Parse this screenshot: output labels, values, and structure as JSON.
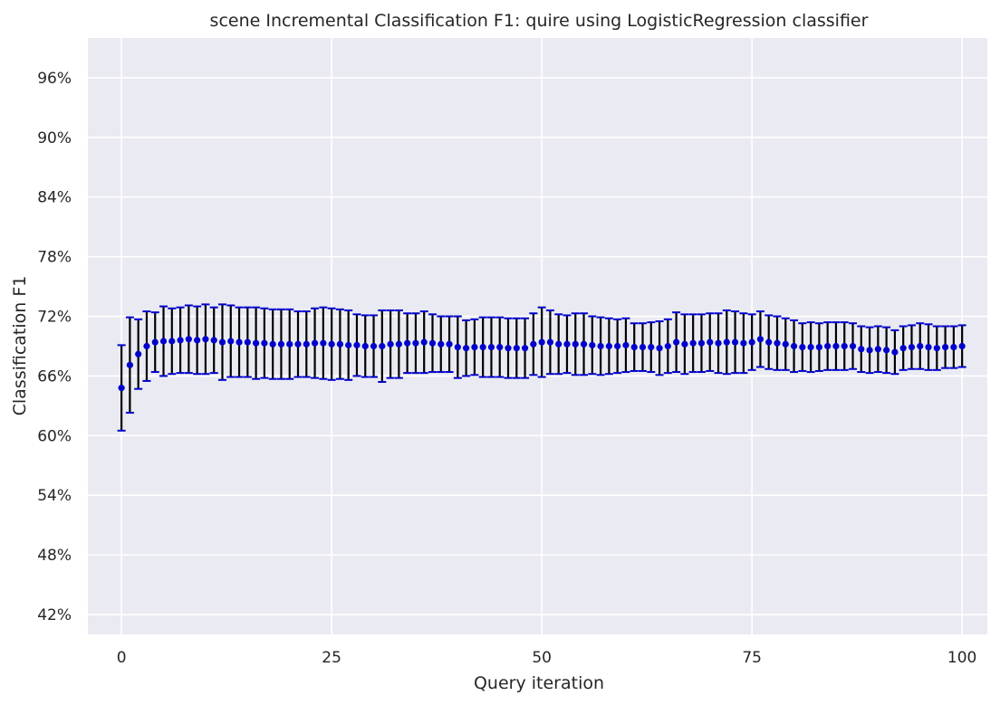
{
  "chart_data": {
    "type": "scatter",
    "subtype": "errorbar",
    "title": "scene Incremental Classification F1: quire using LogisticRegression classifier",
    "xlabel": "Query iteration",
    "ylabel": "Classification F1",
    "xlim": [
      -4,
      103
    ],
    "ylim": [
      0.4,
      1.0
    ],
    "xticks": [
      0,
      25,
      50,
      75,
      100
    ],
    "xtick_labels": [
      "0",
      "25",
      "50",
      "75",
      "100"
    ],
    "yticks": [
      0.42,
      0.48,
      0.54,
      0.6,
      0.66,
      0.72,
      0.78,
      0.84,
      0.9,
      0.96
    ],
    "ytick_labels": [
      "42%",
      "48%",
      "54%",
      "60%",
      "66%",
      "72%",
      "78%",
      "84%",
      "90%",
      "96%"
    ],
    "grid": true,
    "background": "#eaeaf2",
    "marker_color": "#0000cd",
    "errorbar_color": "#000000",
    "cap_color": "#0000cd",
    "series": [
      {
        "x": [
          0,
          1,
          2,
          3,
          4,
          5,
          6,
          7,
          8,
          9,
          10,
          11,
          12,
          13,
          14,
          15,
          16,
          17,
          18,
          19,
          20,
          21,
          22,
          23,
          24,
          25,
          26,
          27,
          28,
          29,
          30,
          31,
          32,
          33,
          34,
          35,
          36,
          37,
          38,
          39,
          40,
          41,
          42,
          43,
          44,
          45,
          46,
          47,
          48,
          49,
          50,
          51,
          52,
          53,
          54,
          55,
          56,
          57,
          58,
          59,
          60,
          61,
          62,
          63,
          64,
          65,
          66,
          67,
          68,
          69,
          70,
          71,
          72,
          73,
          74,
          75,
          76,
          77,
          78,
          79,
          80,
          81,
          82,
          83,
          84,
          85,
          86,
          87,
          88,
          89,
          90,
          91,
          92,
          93,
          94,
          95,
          96,
          97,
          98,
          99,
          100
        ],
        "y": [
          0.648,
          0.671,
          0.682,
          0.69,
          0.694,
          0.695,
          0.695,
          0.696,
          0.697,
          0.696,
          0.697,
          0.696,
          0.694,
          0.695,
          0.694,
          0.694,
          0.693,
          0.693,
          0.692,
          0.692,
          0.692,
          0.692,
          0.692,
          0.693,
          0.693,
          0.692,
          0.692,
          0.691,
          0.691,
          0.69,
          0.69,
          0.69,
          0.692,
          0.692,
          0.693,
          0.693,
          0.694,
          0.693,
          0.692,
          0.692,
          0.689,
          0.688,
          0.689,
          0.689,
          0.689,
          0.689,
          0.688,
          0.688,
          0.688,
          0.692,
          0.694,
          0.694,
          0.692,
          0.692,
          0.692,
          0.692,
          0.691,
          0.69,
          0.69,
          0.69,
          0.691,
          0.689,
          0.689,
          0.689,
          0.688,
          0.69,
          0.694,
          0.692,
          0.693,
          0.693,
          0.694,
          0.693,
          0.694,
          0.694,
          0.693,
          0.694,
          0.697,
          0.694,
          0.693,
          0.692,
          0.69,
          0.689,
          0.689,
          0.689,
          0.69,
          0.69,
          0.69,
          0.69,
          0.687,
          0.686,
          0.687,
          0.686,
          0.684,
          0.688,
          0.689,
          0.69,
          0.689,
          0.688,
          0.689,
          0.689,
          0.69
        ],
        "yerr": [
          0.043,
          0.048,
          0.035,
          0.035,
          0.03,
          0.035,
          0.033,
          0.033,
          0.034,
          0.034,
          0.035,
          0.033,
          0.038,
          0.036,
          0.035,
          0.035,
          0.036,
          0.035,
          0.035,
          0.035,
          0.035,
          0.033,
          0.033,
          0.035,
          0.036,
          0.036,
          0.035,
          0.035,
          0.031,
          0.031,
          0.031,
          0.036,
          0.034,
          0.034,
          0.03,
          0.03,
          0.031,
          0.029,
          0.028,
          0.028,
          0.031,
          0.028,
          0.028,
          0.03,
          0.03,
          0.03,
          0.03,
          0.03,
          0.03,
          0.031,
          0.035,
          0.032,
          0.03,
          0.029,
          0.031,
          0.031,
          0.029,
          0.029,
          0.028,
          0.027,
          0.027,
          0.024,
          0.024,
          0.025,
          0.027,
          0.027,
          0.03,
          0.03,
          0.029,
          0.029,
          0.029,
          0.03,
          0.032,
          0.031,
          0.03,
          0.028,
          0.028,
          0.027,
          0.027,
          0.026,
          0.026,
          0.024,
          0.025,
          0.024,
          0.024,
          0.024,
          0.024,
          0.023,
          0.023,
          0.023,
          0.023,
          0.023,
          0.022,
          0.022,
          0.022,
          0.023,
          0.023,
          0.022,
          0.021,
          0.021,
          0.021
        ]
      }
    ]
  }
}
